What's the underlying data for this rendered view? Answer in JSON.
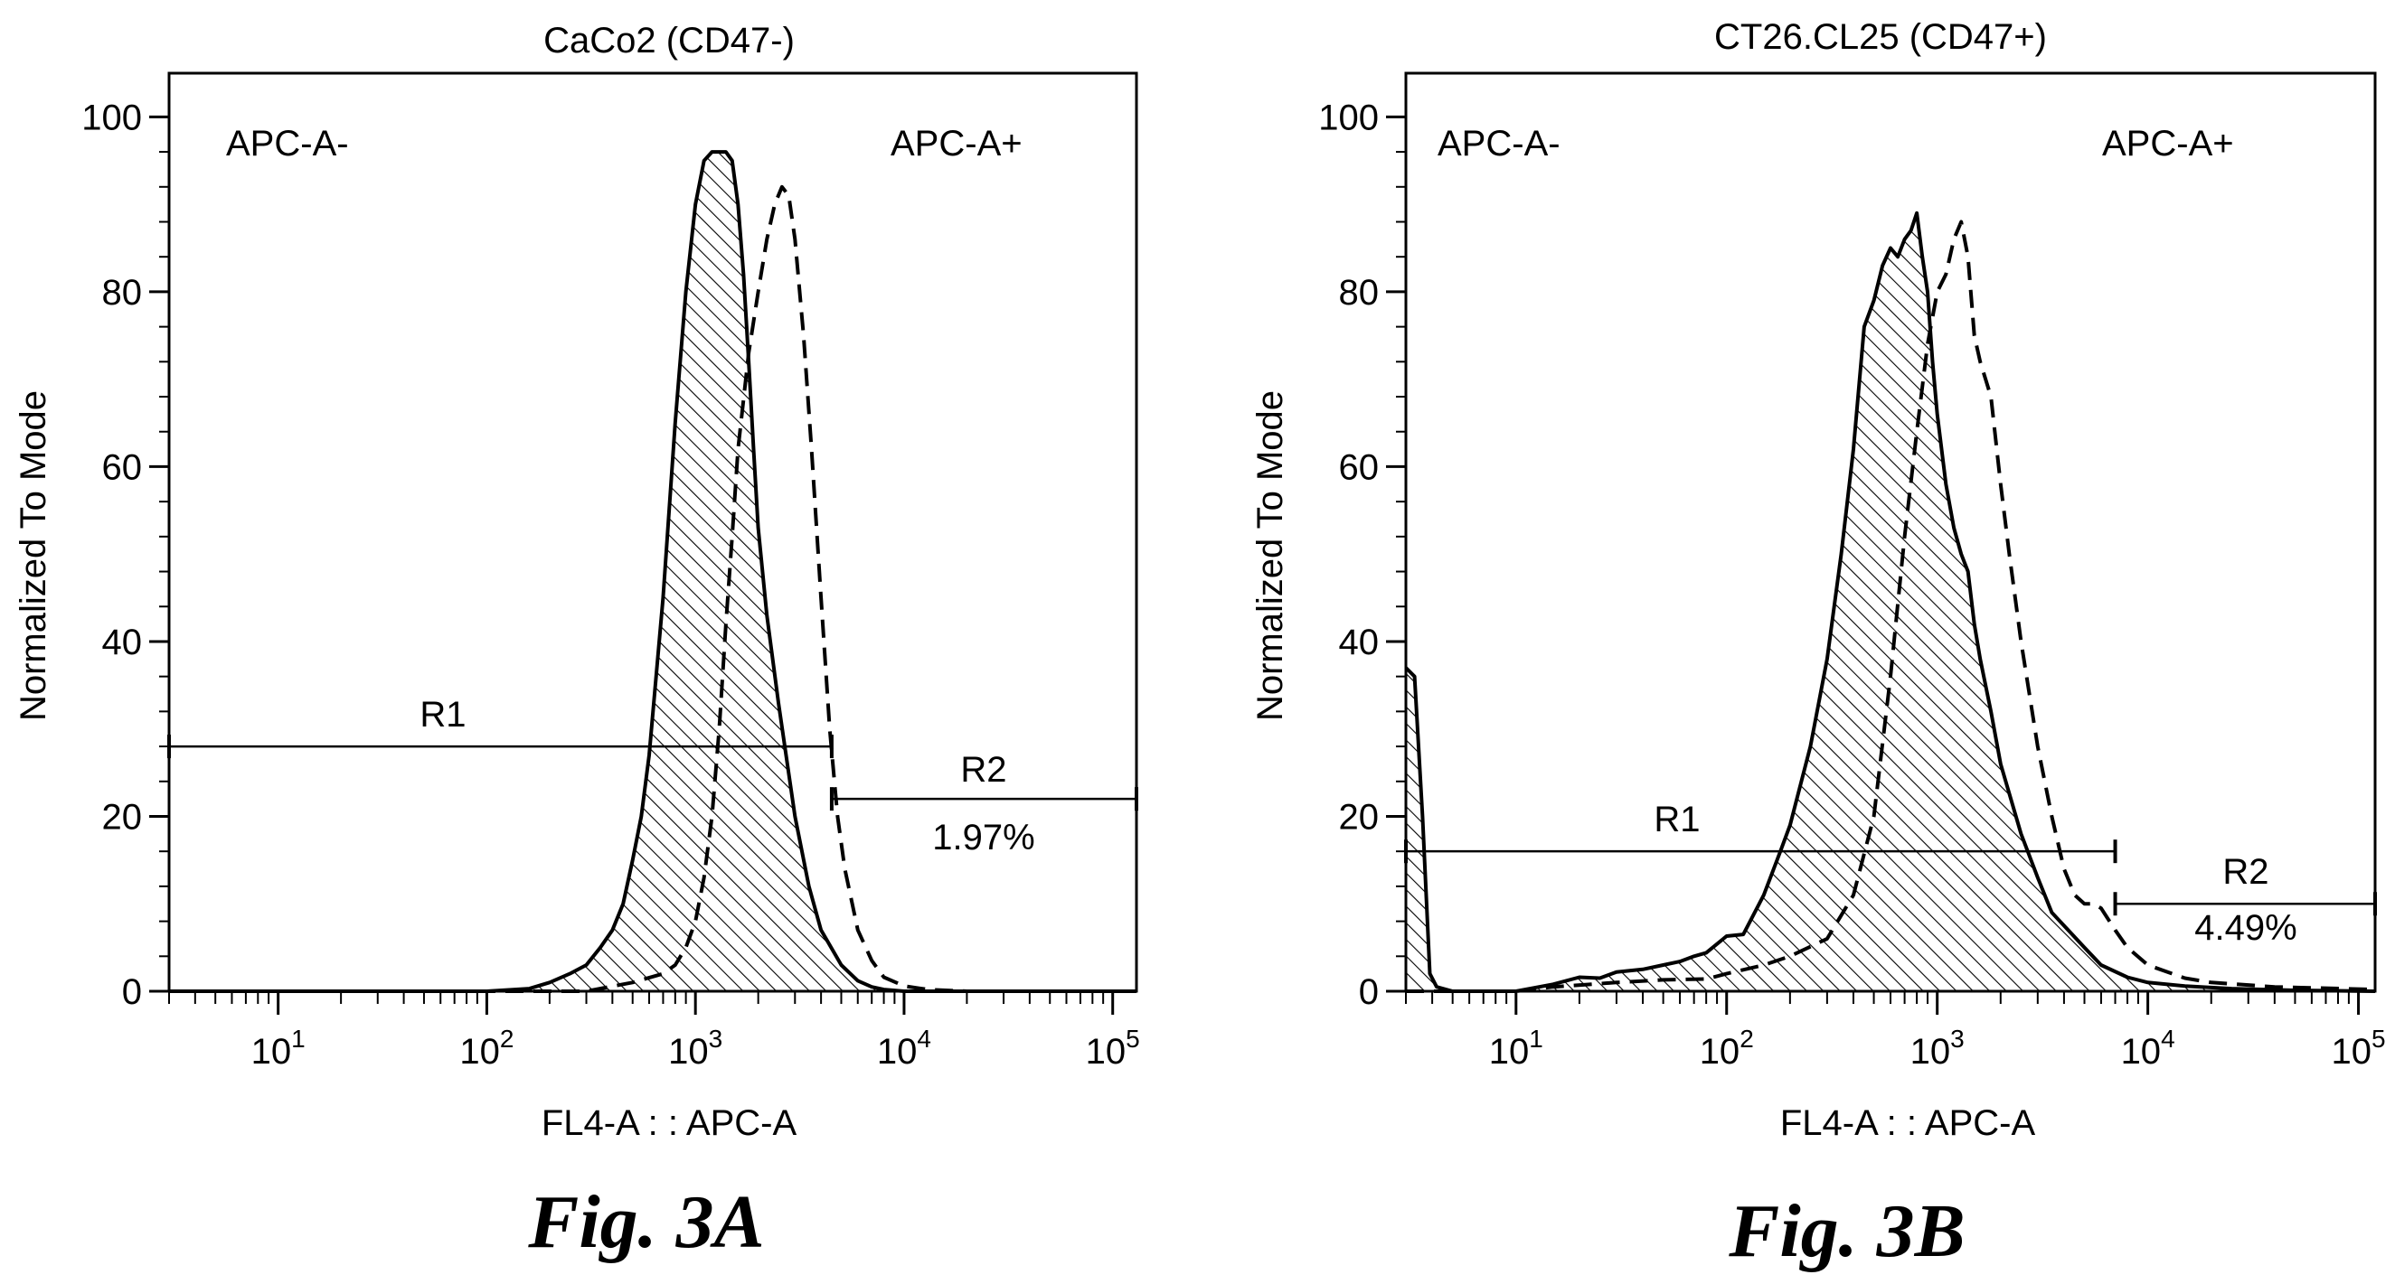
{
  "chart_data": [
    {
      "type": "area",
      "title": "CaCo2 (CD47-)",
      "xlabel": "FL4-A : : APC-A",
      "ylabel": "Normalized To Mode",
      "x_scale": "log",
      "xlim": [
        3,
        130000
      ],
      "ylim": [
        0,
        105
      ],
      "y_ticks": [
        "0",
        "20",
        "40",
        "60",
        "80",
        "100"
      ],
      "x_ticks": [
        {
          "base": "10",
          "exp": "1",
          "value": 10
        },
        {
          "base": "10",
          "exp": "2",
          "value": 100
        },
        {
          "base": "10",
          "exp": "3",
          "value": 1000
        },
        {
          "base": "10",
          "exp": "4",
          "value": 10000
        },
        {
          "base": "10",
          "exp": "5",
          "value": 100000
        }
      ],
      "annotations": {
        "left": "APC-A-",
        "right": "APC-A+"
      },
      "gates": [
        {
          "label": "R1",
          "x_start": 3,
          "x_end": 4500,
          "y": 28,
          "value": ""
        },
        {
          "label": "R2",
          "x_start": 4500,
          "x_end": 130000,
          "y": 22,
          "value": "1.97%"
        }
      ],
      "series": [
        {
          "style": "solid-hatched",
          "x": [
            3,
            100,
            160,
            200,
            250,
            300,
            350,
            400,
            450,
            500,
            550,
            600,
            700,
            800,
            900,
            1000,
            1100,
            1200,
            1300,
            1400,
            1500,
            1600,
            1700,
            1800,
            1900,
            2000,
            2200,
            2500,
            3000,
            3500,
            4000,
            5000,
            6000,
            7000,
            8000,
            10000,
            15000,
            130000
          ],
          "y": [
            0,
            0,
            0.3,
            1,
            2,
            3,
            5,
            7,
            10,
            15,
            20,
            27,
            45,
            65,
            80,
            90,
            95,
            96,
            96,
            96,
            95,
            90,
            82,
            72,
            62,
            53,
            43,
            33,
            20,
            12,
            7,
            3,
            1.2,
            0.5,
            0.2,
            0,
            0,
            0
          ]
        },
        {
          "style": "dashed",
          "x": [
            3,
            300,
            500,
            700,
            800,
            900,
            1000,
            1100,
            1200,
            1300,
            1400,
            1500,
            1600,
            1800,
            2000,
            2200,
            2400,
            2600,
            2800,
            3000,
            3300,
            3600,
            4000,
            4400,
            4800,
            5200,
            6000,
            7000,
            8000,
            10000,
            13000,
            20000,
            130000
          ],
          "y": [
            0,
            0,
            1,
            2,
            3,
            5,
            8,
            13,
            20,
            30,
            42,
            52,
            62,
            73,
            80,
            86,
            90,
            92,
            91,
            86,
            75,
            62,
            45,
            30,
            20,
            14,
            7,
            3.5,
            1.6,
            0.6,
            0.2,
            0,
            0
          ]
        }
      ]
    },
    {
      "type": "area",
      "title": "CT26.CL25 (CD47+)",
      "xlabel": "FL4-A : : APC-A",
      "ylabel": "Normalized To Mode",
      "x_scale": "log",
      "xlim": [
        3,
        120000
      ],
      "ylim": [
        0,
        105
      ],
      "y_ticks": [
        "0",
        "20",
        "40",
        "60",
        "80",
        "100"
      ],
      "x_ticks": [
        {
          "base": "10",
          "exp": "1",
          "value": 10
        },
        {
          "base": "10",
          "exp": "2",
          "value": 100
        },
        {
          "base": "10",
          "exp": "3",
          "value": 1000
        },
        {
          "base": "10",
          "exp": "4",
          "value": 10000
        },
        {
          "base": "10",
          "exp": "5",
          "value": 100000
        }
      ],
      "annotations": {
        "left": "APC-A-",
        "right": "APC-A+"
      },
      "gates": [
        {
          "label": "R1",
          "x_start": 3,
          "x_end": 7000,
          "y": 16,
          "value": ""
        },
        {
          "label": "R2",
          "x_start": 7000,
          "x_end": 120000,
          "y": 10,
          "value": "4.49%"
        }
      ],
      "series": [
        {
          "style": "solid-hatched",
          "x": [
            3,
            3.3,
            3.6,
            3.9,
            4.2,
            5,
            10,
            15,
            20,
            25,
            30,
            40,
            50,
            60,
            70,
            80,
            100,
            120,
            150,
            180,
            200,
            250,
            300,
            350,
            400,
            450,
            500,
            550,
            600,
            650,
            700,
            750,
            800,
            850,
            900,
            950,
            1000,
            1100,
            1200,
            1300,
            1400,
            1500,
            1600,
            1800,
            2000,
            2500,
            3000,
            3500,
            4000,
            5000,
            6000,
            8000,
            10000,
            15000,
            25000,
            50000,
            120000
          ],
          "y": [
            37,
            36,
            20,
            2,
            0.5,
            0,
            0,
            0.8,
            1.6,
            1.5,
            2.2,
            2.5,
            3,
            3.4,
            4,
            4.4,
            6.3,
            6.5,
            11,
            16,
            19,
            28,
            38,
            50,
            62,
            76,
            79,
            83,
            85,
            84,
            86,
            87,
            89,
            84,
            80,
            72,
            66,
            58,
            53,
            50,
            48,
            42,
            38,
            32,
            26,
            18,
            13,
            9,
            7.5,
            5,
            3,
            1.6,
            1,
            0.6,
            0.3,
            0.1,
            0
          ]
        },
        {
          "style": "dashed",
          "x": [
            3,
            10,
            15,
            30,
            50,
            80,
            100,
            150,
            200,
            300,
            400,
            500,
            600,
            700,
            800,
            900,
            1000,
            1100,
            1200,
            1300,
            1400,
            1500,
            1600,
            1800,
            2000,
            2200,
            2500,
            3000,
            3500,
            4000,
            4500,
            5000,
            5500,
            6000,
            7000,
            8000,
            10000,
            15000,
            20000,
            40000,
            120000
          ],
          "y": [
            0,
            0,
            0.5,
            1,
            1.3,
            1.4,
            2,
            3,
            4,
            6,
            11,
            20,
            36,
            52,
            64,
            74,
            80,
            82,
            86,
            88,
            84,
            75,
            72,
            68,
            58,
            50,
            40,
            28,
            20,
            14,
            11,
            10,
            10,
            9.5,
            7,
            5,
            3,
            1.5,
            1,
            0.5,
            0.2
          ]
        }
      ]
    }
  ],
  "figure_labels": {
    "fig_a": "Fig. 3A",
    "fig_b": "Fig. 3B"
  }
}
